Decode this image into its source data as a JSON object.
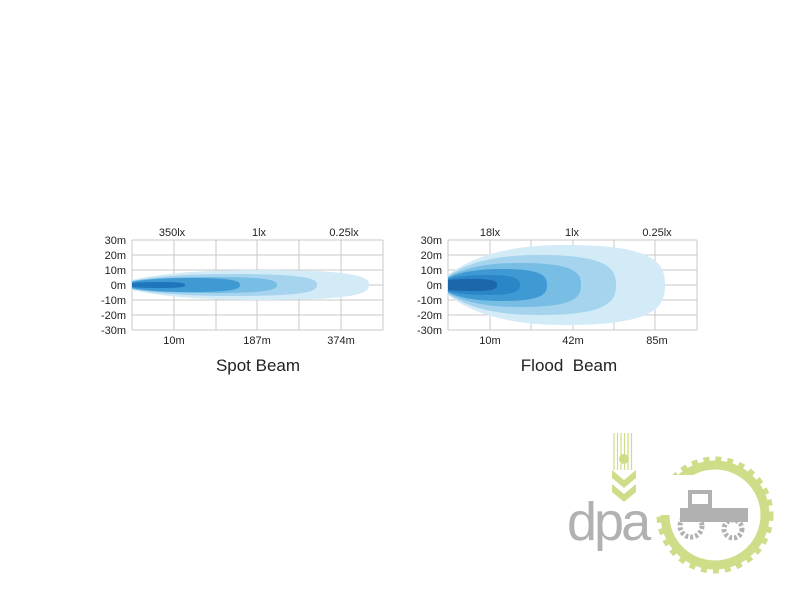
{
  "charts": [
    {
      "title": "Spot Beam",
      "y_ticks": [
        "30m",
        "20m",
        "10m",
        "0m",
        "-10m",
        "-20m",
        "-30m"
      ],
      "lux_labels": [
        "350lx",
        "1lx",
        "0.25lx"
      ],
      "distance_labels": [
        "10m",
        "187m",
        "374m"
      ],
      "colors": [
        "#d3ebf7",
        "#a6d4ee",
        "#78bde4",
        "#3f9ad4",
        "#1f76bd"
      ]
    },
    {
      "title": "Flood  Beam",
      "y_ticks": [
        "30m",
        "20m",
        "10m",
        "0m",
        "-10m",
        "-20m",
        "-30m"
      ],
      "lux_labels": [
        "18lx",
        "1lx",
        "0.25lx"
      ],
      "distance_labels": [
        "10m",
        "42m",
        "85m"
      ],
      "colors": [
        "#d3ebf7",
        "#a6d4ee",
        "#78bde4",
        "#3f9ad4",
        "#2a86c6",
        "#1c66ab"
      ]
    }
  ],
  "logo": {
    "text": "dpa",
    "gray": "#a9a9a9",
    "green": "#c9da7c"
  }
}
